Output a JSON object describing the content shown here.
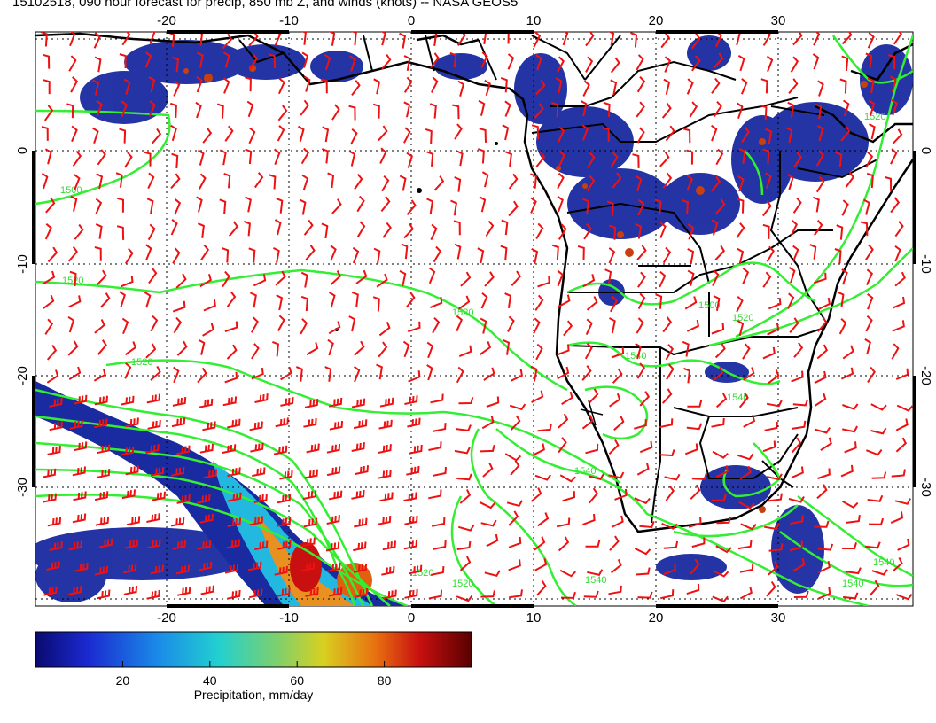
{
  "title": "15102518, 090 hour forecast for precip, 850 mb Z, and winds (knots) -- NASA GEOS5",
  "map": {
    "lon_ticks": [
      "-20",
      "-10",
      "0",
      "10",
      "20",
      "30"
    ],
    "lat_ticks": [
      "0",
      "-10",
      "-20",
      "-30"
    ],
    "contour_labels": [
      "1500",
      "1520",
      "1520",
      "1520",
      "1500",
      "1520",
      "1540",
      "1540",
      "1540",
      "1540",
      "1520",
      "1520",
      "1540",
      "1540",
      "1520"
    ],
    "colors": {
      "contour": "#33ee33",
      "barb": "#ee1111",
      "coast": "#000000",
      "precip_low": "#1a2aa0",
      "precip_high": "#8b0000"
    }
  },
  "colorbar": {
    "label": "Precipitation, mm/day",
    "ticks": [
      "20",
      "40",
      "60",
      "80"
    ],
    "scale": {
      "min": 0,
      "max": 100
    }
  }
}
